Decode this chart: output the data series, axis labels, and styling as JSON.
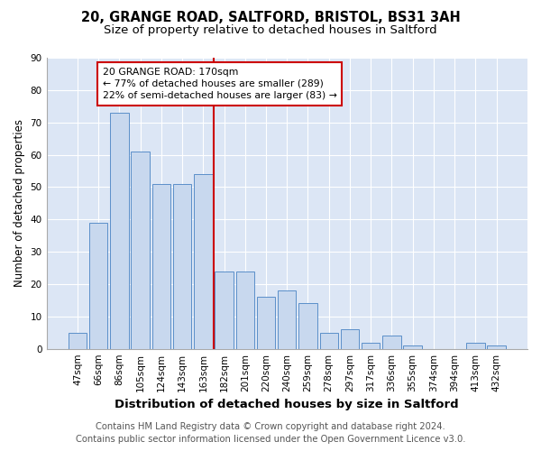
{
  "title_line1": "20, GRANGE ROAD, SALTFORD, BRISTOL, BS31 3AH",
  "title_line2": "Size of property relative to detached houses in Saltford",
  "xlabel": "Distribution of detached houses by size in Saltford",
  "ylabel": "Number of detached properties",
  "categories": [
    "47sqm",
    "66sqm",
    "86sqm",
    "105sqm",
    "124sqm",
    "143sqm",
    "163sqm",
    "182sqm",
    "201sqm",
    "220sqm",
    "240sqm",
    "259sqm",
    "278sqm",
    "297sqm",
    "317sqm",
    "336sqm",
    "355sqm",
    "374sqm",
    "394sqm",
    "413sqm",
    "432sqm"
  ],
  "values": [
    5,
    39,
    73,
    61,
    51,
    51,
    54,
    24,
    24,
    16,
    18,
    14,
    5,
    6,
    2,
    4,
    1,
    0,
    0,
    2,
    1
  ],
  "bar_color": "#c8d8ee",
  "bar_edge_color": "#5b8fc9",
  "vline_index": 7,
  "annotation_line_label": "20 GRANGE ROAD: 170sqm",
  "annotation_text1": "← 77% of detached houses are smaller (289)",
  "annotation_text2": "22% of semi-detached houses are larger (83) →",
  "annotation_box_facecolor": "#ffffff",
  "annotation_box_edgecolor": "#cc0000",
  "vline_color": "#cc0000",
  "ylim": [
    0,
    90
  ],
  "yticks": [
    0,
    10,
    20,
    30,
    40,
    50,
    60,
    70,
    80,
    90
  ],
  "figure_bg": "#ffffff",
  "plot_bg": "#dce6f5",
  "grid_color": "#ffffff",
  "footer_line1": "Contains HM Land Registry data © Crown copyright and database right 2024.",
  "footer_line2": "Contains public sector information licensed under the Open Government Licence v3.0.",
  "title_fontsize": 10.5,
  "subtitle_fontsize": 9.5,
  "xlabel_fontsize": 9.5,
  "ylabel_fontsize": 8.5,
  "tick_fontsize": 7.5,
  "annotation_fontsize": 7.8,
  "footer_fontsize": 7.2
}
